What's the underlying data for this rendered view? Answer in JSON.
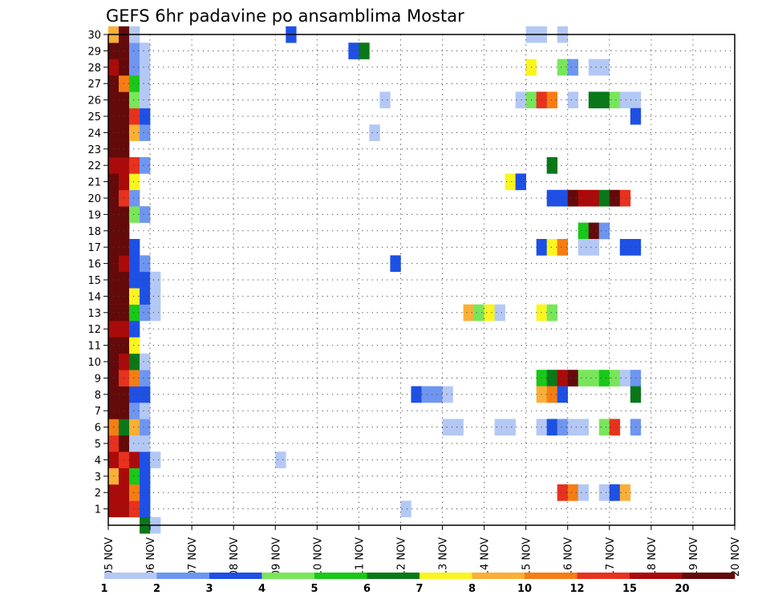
{
  "chart_data": {
    "type": "heatmap",
    "title": "GEFS 6hr padavine po ansamblima Mostar",
    "xlabel": "",
    "ylabel": "",
    "x_tick_labels": [
      "05 NOV",
      "06 NOV",
      "07 NOV",
      "08 NOV",
      "09 NOV",
      "10 NOV",
      "11 NOV",
      "12 NOV",
      "13 NOV",
      "14 NOV",
      "15 NOV",
      "16 NOV",
      "17 NOV",
      "18 NOV",
      "19 NOV",
      "20 NOV"
    ],
    "y_tick_labels": [
      "1",
      "2",
      "3",
      "4",
      "5",
      "6",
      "7",
      "8",
      "9",
      "10",
      "11",
      "12",
      "13",
      "14",
      "15",
      "16",
      "17",
      "18",
      "19",
      "20",
      "21",
      "22",
      "23",
      "24",
      "25",
      "26",
      "27",
      "28",
      "29",
      "30"
    ],
    "x_range_steps": [
      0,
      60
    ],
    "y_range_members": [
      0,
      30
    ],
    "grid": true,
    "colorbar": {
      "colors": [
        "#b4c8f5",
        "#6e96f0",
        "#1e50e6",
        "#78e65a",
        "#19c819",
        "#0a7819",
        "#faf51e",
        "#faaf37",
        "#f57d14",
        "#e6321e",
        "#aa0a0a",
        "#640a0a"
      ],
      "tick_labels": [
        "1",
        "2",
        "3",
        "4",
        "5",
        "6",
        "7",
        "8",
        "10",
        "12",
        "15",
        "20"
      ]
    },
    "cells": [
      [
        0,
        1,
        10
      ],
      [
        1,
        1,
        10
      ],
      [
        2,
        1,
        9
      ],
      [
        0,
        2,
        10
      ],
      [
        1,
        2,
        10
      ],
      [
        2,
        2,
        8
      ],
      [
        0,
        3,
        7
      ],
      [
        1,
        3,
        10
      ],
      [
        2,
        3,
        4
      ],
      [
        0,
        4,
        10
      ],
      [
        1,
        4,
        9
      ],
      [
        2,
        4,
        10
      ],
      [
        0,
        5,
        9
      ],
      [
        1,
        5,
        11
      ],
      [
        2,
        5,
        0
      ],
      [
        0,
        6,
        8
      ],
      [
        1,
        6,
        5
      ],
      [
        2,
        6,
        7
      ],
      [
        0,
        7,
        11
      ],
      [
        1,
        7,
        11
      ],
      [
        2,
        7,
        1
      ],
      [
        0,
        8,
        11
      ],
      [
        1,
        8,
        11
      ],
      [
        2,
        8,
        2
      ],
      [
        0,
        9,
        11
      ],
      [
        1,
        9,
        9
      ],
      [
        2,
        9,
        8
      ],
      [
        0,
        10,
        11
      ],
      [
        1,
        10,
        10
      ],
      [
        2,
        10,
        5
      ],
      [
        0,
        11,
        11
      ],
      [
        1,
        11,
        11
      ],
      [
        2,
        11,
        6
      ],
      [
        0,
        12,
        10
      ],
      [
        1,
        12,
        10
      ],
      [
        2,
        12,
        2
      ],
      [
        0,
        13,
        11
      ],
      [
        1,
        13,
        11
      ],
      [
        2,
        13,
        4
      ],
      [
        0,
        14,
        11
      ],
      [
        1,
        14,
        11
      ],
      [
        2,
        14,
        6
      ],
      [
        0,
        15,
        11
      ],
      [
        1,
        15,
        11
      ],
      [
        2,
        15,
        2
      ],
      [
        0,
        16,
        11
      ],
      [
        1,
        16,
        10
      ],
      [
        2,
        16,
        2
      ],
      [
        0,
        17,
        11
      ],
      [
        1,
        17,
        11
      ],
      [
        2,
        17,
        2
      ],
      [
        0,
        18,
        11
      ],
      [
        1,
        18,
        11
      ],
      [
        0,
        19,
        11
      ],
      [
        1,
        19,
        11
      ],
      [
        2,
        19,
        3
      ],
      [
        0,
        20,
        11
      ],
      [
        1,
        20,
        9
      ],
      [
        2,
        20,
        1
      ],
      [
        0,
        21,
        11
      ],
      [
        1,
        21,
        10
      ],
      [
        2,
        21,
        6
      ],
      [
        0,
        22,
        10
      ],
      [
        1,
        22,
        10
      ],
      [
        2,
        22,
        9
      ],
      [
        0,
        23,
        11
      ],
      [
        1,
        23,
        11
      ],
      [
        0,
        24,
        11
      ],
      [
        1,
        24,
        11
      ],
      [
        2,
        24,
        7
      ],
      [
        0,
        25,
        11
      ],
      [
        1,
        25,
        11
      ],
      [
        2,
        25,
        9
      ],
      [
        0,
        26,
        11
      ],
      [
        1,
        26,
        11
      ],
      [
        2,
        26,
        3
      ],
      [
        0,
        27,
        11
      ],
      [
        1,
        27,
        8
      ],
      [
        2,
        27,
        4
      ],
      [
        0,
        28,
        10
      ],
      [
        1,
        28,
        11
      ],
      [
        2,
        28,
        1
      ],
      [
        0,
        29,
        11
      ],
      [
        1,
        29,
        11
      ],
      [
        2,
        29,
        1
      ],
      [
        0,
        30,
        7
      ],
      [
        1,
        30,
        11
      ],
      [
        2,
        30,
        0
      ],
      [
        3,
        0,
        5
      ],
      [
        4,
        0,
        0
      ],
      [
        3,
        1,
        2
      ],
      [
        3,
        2,
        2
      ],
      [
        3,
        3,
        2
      ],
      [
        3,
        4,
        2
      ],
      [
        4,
        4,
        0
      ],
      [
        3,
        5,
        0
      ],
      [
        3,
        6,
        1
      ],
      [
        3,
        7,
        0
      ],
      [
        3,
        8,
        2
      ],
      [
        3,
        9,
        1
      ],
      [
        3,
        10,
        0
      ],
      [
        3,
        13,
        1
      ],
      [
        4,
        13,
        0
      ],
      [
        3,
        14,
        2
      ],
      [
        4,
        14,
        0
      ],
      [
        3,
        15,
        2
      ],
      [
        4,
        15,
        0
      ],
      [
        3,
        16,
        1
      ],
      [
        3,
        19,
        1
      ],
      [
        3,
        22,
        1
      ],
      [
        3,
        24,
        1
      ],
      [
        3,
        25,
        2
      ],
      [
        3,
        26,
        0
      ],
      [
        3,
        27,
        0
      ],
      [
        3,
        28,
        0
      ],
      [
        3,
        29,
        0
      ],
      [
        16,
        4,
        0
      ],
      [
        17,
        30,
        2
      ],
      [
        23,
        29,
        2
      ],
      [
        24,
        29,
        5
      ],
      [
        26,
        26,
        0
      ],
      [
        25,
        24,
        0
      ],
      [
        27,
        16,
        2
      ],
      [
        28,
        1,
        0
      ],
      [
        29,
        8,
        2
      ],
      [
        30,
        8,
        1
      ],
      [
        31,
        8,
        1
      ],
      [
        32,
        8,
        0
      ],
      [
        32,
        6,
        0
      ],
      [
        33,
        6,
        0
      ],
      [
        34,
        13,
        7
      ],
      [
        35,
        13,
        3
      ],
      [
        36,
        13,
        6
      ],
      [
        37,
        13,
        0
      ],
      [
        37,
        6,
        0
      ],
      [
        38,
        6,
        0
      ],
      [
        38,
        21,
        6
      ],
      [
        39,
        21,
        2
      ],
      [
        40,
        30,
        0
      ],
      [
        41,
        30,
        0
      ],
      [
        43,
        30,
        0
      ],
      [
        40,
        28,
        6
      ],
      [
        43,
        28,
        3
      ],
      [
        44,
        28,
        1
      ],
      [
        46,
        28,
        0
      ],
      [
        47,
        28,
        0
      ],
      [
        39,
        26,
        0
      ],
      [
        40,
        26,
        3
      ],
      [
        41,
        26,
        9
      ],
      [
        42,
        26,
        8
      ],
      [
        44,
        26,
        0
      ],
      [
        46,
        26,
        5
      ],
      [
        47,
        26,
        5
      ],
      [
        48,
        26,
        3
      ],
      [
        49,
        26,
        0
      ],
      [
        50,
        26,
        0
      ],
      [
        50,
        25,
        2
      ],
      [
        42,
        22,
        5
      ],
      [
        42,
        20,
        2
      ],
      [
        43,
        20,
        2
      ],
      [
        44,
        20,
        11
      ],
      [
        45,
        20,
        10
      ],
      [
        46,
        20,
        10
      ],
      [
        47,
        20,
        5
      ],
      [
        48,
        20,
        11
      ],
      [
        49,
        20,
        9
      ],
      [
        45,
        18,
        4
      ],
      [
        46,
        18,
        11
      ],
      [
        47,
        18,
        1
      ],
      [
        41,
        17,
        2
      ],
      [
        42,
        17,
        6
      ],
      [
        43,
        17,
        8
      ],
      [
        45,
        17,
        0
      ],
      [
        46,
        17,
        0
      ],
      [
        49,
        17,
        2
      ],
      [
        50,
        17,
        2
      ],
      [
        41,
        13,
        6
      ],
      [
        42,
        13,
        3
      ],
      [
        41,
        9,
        4
      ],
      [
        42,
        9,
        5
      ],
      [
        43,
        9,
        10
      ],
      [
        44,
        9,
        11
      ],
      [
        45,
        9,
        3
      ],
      [
        46,
        9,
        3
      ],
      [
        47,
        9,
        4
      ],
      [
        48,
        9,
        3
      ],
      [
        49,
        9,
        0
      ],
      [
        50,
        9,
        1
      ],
      [
        41,
        8,
        7
      ],
      [
        42,
        8,
        8
      ],
      [
        43,
        8,
        2
      ],
      [
        50,
        8,
        5
      ],
      [
        41,
        6,
        0
      ],
      [
        42,
        6,
        2
      ],
      [
        43,
        6,
        1
      ],
      [
        44,
        6,
        0
      ],
      [
        45,
        6,
        0
      ],
      [
        47,
        6,
        3
      ],
      [
        48,
        6,
        9
      ],
      [
        50,
        6,
        1
      ],
      [
        43,
        2,
        9
      ],
      [
        44,
        2,
        8
      ],
      [
        45,
        2,
        0
      ],
      [
        47,
        2,
        0
      ],
      [
        48,
        2,
        2
      ],
      [
        49,
        2,
        7
      ]
    ]
  }
}
